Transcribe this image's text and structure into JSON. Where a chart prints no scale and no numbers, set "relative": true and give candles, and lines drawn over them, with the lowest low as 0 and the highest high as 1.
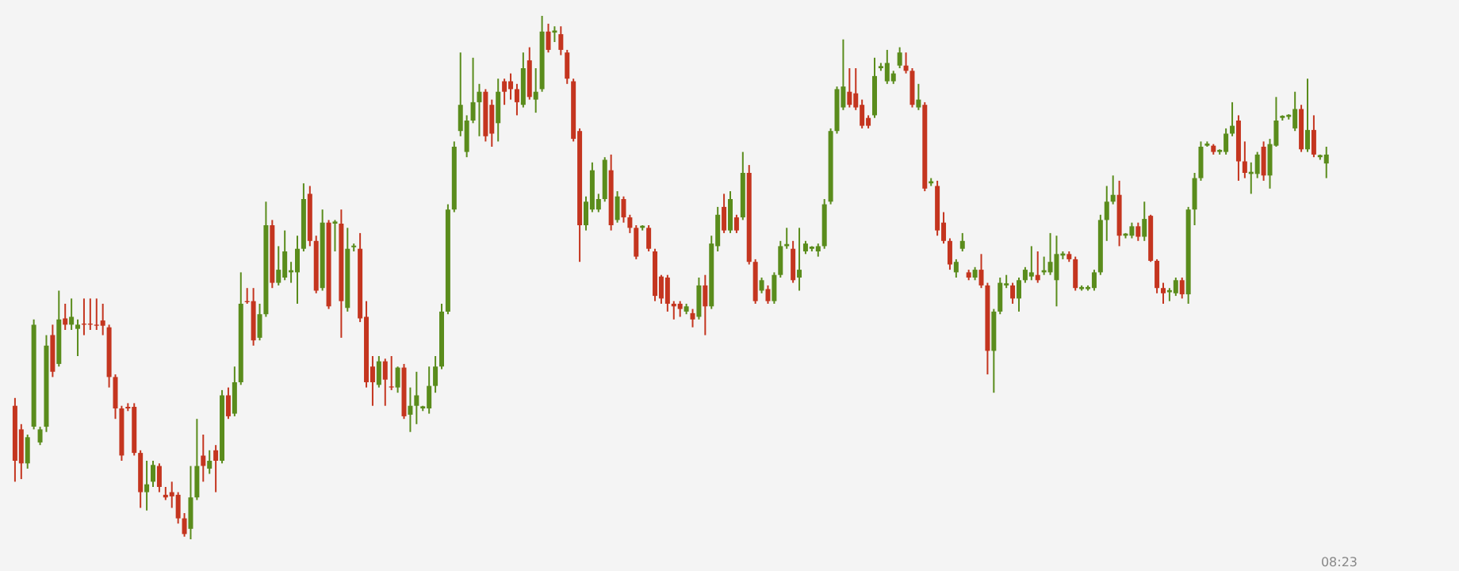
{
  "chart_data": {
    "type": "candlestick",
    "relative": true,
    "categories": [
      null,
      null,
      null,
      null,
      null,
      null,
      null,
      null,
      null,
      null,
      null,
      null,
      null,
      null,
      null,
      null,
      null,
      null,
      null,
      null,
      null,
      null,
      null,
      null,
      null,
      null,
      null,
      null,
      null,
      null,
      null,
      null,
      null,
      null,
      null,
      null,
      null,
      null,
      null,
      null,
      null,
      null,
      null,
      null,
      null,
      null,
      null,
      null,
      null,
      null,
      null,
      null,
      null,
      null,
      null,
      null,
      null,
      null,
      null,
      null,
      null,
      null,
      null,
      null,
      null,
      null,
      null,
      null,
      null,
      null,
      null,
      null,
      null,
      null,
      null,
      null,
      null,
      null,
      null,
      null,
      null,
      null,
      null,
      null,
      null,
      null,
      null,
      null,
      null,
      null,
      null,
      null,
      null,
      null,
      null,
      null,
      null,
      null,
      null,
      null,
      null,
      null,
      null,
      null,
      null,
      null,
      null,
      null,
      null,
      null,
      null,
      null,
      null,
      null,
      null,
      null,
      null,
      null,
      null,
      null,
      null,
      null,
      null,
      null,
      null,
      null,
      null,
      null,
      null,
      null,
      null,
      null,
      null,
      null,
      null,
      null,
      null,
      null,
      null,
      null,
      null,
      null,
      null,
      null,
      null,
      null,
      null,
      null,
      null,
      null,
      null,
      null,
      null,
      null,
      null,
      null,
      null,
      null,
      null,
      null,
      null,
      null,
      null,
      null,
      null,
      null,
      null,
      null,
      null,
      null,
      null,
      null,
      null,
      null,
      null,
      null,
      null,
      null,
      null,
      null,
      null,
      null,
      null,
      null,
      null,
      null,
      null,
      null,
      null,
      null,
      null,
      null,
      null,
      null,
      null,
      null,
      null,
      null,
      null,
      null,
      null,
      null,
      null,
      null,
      null,
      null,
      null,
      null,
      null,
      null
    ],
    "annotations": [
      "08:23"
    ],
    "ohlc": [
      [
        0.255,
        0.27,
        0.11,
        0.15
      ],
      [
        0.21,
        0.22,
        0.115,
        0.145
      ],
      [
        0.145,
        0.2,
        0.135,
        0.195
      ],
      [
        0.215,
        0.42,
        0.21,
        0.41
      ],
      [
        0.185,
        0.215,
        0.18,
        0.21
      ],
      [
        0.215,
        0.39,
        0.205,
        0.37
      ],
      [
        0.39,
        0.41,
        0.31,
        0.32
      ],
      [
        0.335,
        0.475,
        0.33,
        0.42
      ],
      [
        0.422,
        0.45,
        0.4,
        0.41
      ],
      [
        0.41,
        0.46,
        0.4,
        0.425
      ],
      [
        0.402,
        0.42,
        0.35,
        0.41
      ],
      [
        0.412,
        0.46,
        0.39,
        0.41
      ],
      [
        0.412,
        0.46,
        0.4,
        0.41
      ],
      [
        0.41,
        0.46,
        0.4,
        0.408
      ],
      [
        0.418,
        0.45,
        0.39,
        0.408
      ],
      [
        0.405,
        0.41,
        0.29,
        0.31
      ],
      [
        0.31,
        0.315,
        0.23,
        0.25
      ],
      [
        0.25,
        0.255,
        0.15,
        0.16
      ],
      [
        0.253,
        0.26,
        0.245,
        0.25
      ],
      [
        0.253,
        0.26,
        0.16,
        0.165
      ],
      [
        0.165,
        0.17,
        0.06,
        0.09
      ],
      [
        0.09,
        0.15,
        0.055,
        0.105
      ],
      [
        0.11,
        0.15,
        0.1,
        0.142
      ],
      [
        0.14,
        0.145,
        0.09,
        0.1
      ],
      [
        0.085,
        0.1,
        0.075,
        0.08
      ],
      [
        0.09,
        0.11,
        0.06,
        0.082
      ],
      [
        0.085,
        0.09,
        0.03,
        0.04
      ],
      [
        0.04,
        0.05,
        0.005,
        0.01
      ],
      [
        0.02,
        0.14,
        0,
        0.08
      ],
      [
        0.08,
        0.23,
        0.075,
        0.14
      ],
      [
        0.16,
        0.2,
        0.11,
        0.14
      ],
      [
        0.135,
        0.17,
        0.125,
        0.15
      ],
      [
        0.17,
        0.18,
        0.09,
        0.15
      ],
      [
        0.15,
        0.285,
        0.145,
        0.275
      ],
      [
        0.275,
        0.29,
        0.23,
        0.235
      ],
      [
        0.24,
        0.33,
        0.235,
        0.3
      ],
      [
        0.3,
        0.51,
        0.295,
        0.45
      ],
      [
        0.455,
        0.48,
        0.45,
        0.453
      ],
      [
        0.455,
        0.48,
        0.37,
        0.38
      ],
      [
        0.385,
        0.45,
        0.38,
        0.43
      ],
      [
        0.43,
        0.645,
        0.425,
        0.6
      ],
      [
        0.6,
        0.61,
        0.48,
        0.49
      ],
      [
        0.49,
        0.56,
        0.485,
        0.515
      ],
      [
        0.5,
        0.59,
        0.495,
        0.55
      ],
      [
        0.51,
        0.53,
        0.49,
        0.514
      ],
      [
        0.51,
        0.58,
        0.45,
        0.555
      ],
      [
        0.555,
        0.68,
        0.55,
        0.65
      ],
      [
        0.66,
        0.675,
        0.56,
        0.57
      ],
      [
        0.57,
        0.58,
        0.47,
        0.475
      ],
      [
        0.48,
        0.63,
        0.475,
        0.605
      ],
      [
        0.605,
        0.61,
        0.44,
        0.445
      ],
      [
        0.603,
        0.61,
        0.55,
        0.607
      ],
      [
        0.603,
        0.63,
        0.385,
        0.455
      ],
      [
        0.442,
        0.595,
        0.435,
        0.555
      ],
      [
        0.558,
        0.565,
        0.55,
        0.561
      ],
      [
        0.555,
        0.585,
        0.415,
        0.422
      ],
      [
        0.425,
        0.455,
        0.29,
        0.3
      ],
      [
        0.33,
        0.35,
        0.255,
        0.3
      ],
      [
        0.295,
        0.35,
        0.29,
        0.34
      ],
      [
        0.34,
        0.345,
        0.255,
        0.305
      ],
      [
        0.292,
        0.35,
        0.285,
        0.29
      ],
      [
        0.29,
        0.33,
        0.28,
        0.328
      ],
      [
        0.328,
        0.335,
        0.23,
        0.235
      ],
      [
        0.238,
        0.29,
        0.205,
        0.255
      ],
      [
        0.255,
        0.32,
        0.22,
        0.275
      ],
      [
        0.25,
        0.255,
        0.245,
        0.254
      ],
      [
        0.25,
        0.33,
        0.24,
        0.293
      ],
      [
        0.293,
        0.35,
        0.28,
        0.33
      ],
      [
        0.33,
        0.45,
        0.325,
        0.435
      ],
      [
        0.435,
        0.64,
        0.43,
        0.63
      ],
      [
        0.63,
        0.76,
        0.625,
        0.75
      ],
      [
        0.78,
        0.93,
        0.77,
        0.83
      ],
      [
        0.74,
        0.81,
        0.73,
        0.8
      ],
      [
        0.8,
        0.92,
        0.795,
        0.835
      ],
      [
        0.835,
        0.87,
        0.77,
        0.855
      ],
      [
        0.855,
        0.86,
        0.76,
        0.77
      ],
      [
        0.83,
        0.84,
        0.75,
        0.775
      ],
      [
        0.795,
        0.88,
        0.76,
        0.855
      ],
      [
        0.875,
        0.88,
        0.83,
        0.855
      ],
      [
        0.875,
        0.89,
        0.84,
        0.86
      ],
      [
        0.86,
        0.87,
        0.81,
        0.835
      ],
      [
        0.83,
        0.93,
        0.825,
        0.9
      ],
      [
        0.915,
        0.94,
        0.84,
        0.845
      ],
      [
        0.84,
        0.9,
        0.815,
        0.855
      ],
      [
        0.86,
        1,
        0.855,
        0.97
      ],
      [
        0.97,
        0.985,
        0.93,
        0.935
      ],
      [
        0.968,
        0.98,
        0.95,
        0.972
      ],
      [
        0.965,
        0.98,
        0.925,
        0.935
      ],
      [
        0.93,
        0.935,
        0.87,
        0.88
      ],
      [
        0.875,
        0.88,
        0.76,
        0.765
      ],
      [
        0.78,
        0.785,
        0.53,
        0.6
      ],
      [
        0.6,
        0.655,
        0.59,
        0.645
      ],
      [
        0.63,
        0.72,
        0.625,
        0.705
      ],
      [
        0.63,
        0.66,
        0.625,
        0.65
      ],
      [
        0.65,
        0.73,
        0.645,
        0.725
      ],
      [
        0.705,
        0.735,
        0.59,
        0.6
      ],
      [
        0.61,
        0.665,
        0.605,
        0.655
      ],
      [
        0.65,
        0.655,
        0.605,
        0.615
      ],
      [
        0.615,
        0.62,
        0.585,
        0.595
      ],
      [
        0.595,
        0.6,
        0.535,
        0.54
      ],
      [
        0.595,
        0.6,
        0.59,
        0.599
      ],
      [
        0.595,
        0.6,
        0.55,
        0.555
      ],
      [
        0.55,
        0.555,
        0.455,
        0.465
      ],
      [
        0.502,
        0.505,
        0.45,
        0.46
      ],
      [
        0.5,
        0.505,
        0.435,
        0.45
      ],
      [
        0.45,
        0.455,
        0.42,
        0.445
      ],
      [
        0.45,
        0.455,
        0.425,
        0.44
      ],
      [
        0.435,
        0.45,
        0.43,
        0.445
      ],
      [
        0.432,
        0.44,
        0.405,
        0.42
      ],
      [
        0.425,
        0.5,
        0.42,
        0.485
      ],
      [
        0.485,
        0.505,
        0.39,
        0.445
      ],
      [
        0.445,
        0.58,
        0.44,
        0.565
      ],
      [
        0.56,
        0.635,
        0.55,
        0.62
      ],
      [
        0.635,
        0.66,
        0.585,
        0.59
      ],
      [
        0.59,
        0.665,
        0.585,
        0.65
      ],
      [
        0.615,
        0.62,
        0.585,
        0.59
      ],
      [
        0.615,
        0.74,
        0.61,
        0.7
      ],
      [
        0.7,
        0.715,
        0.525,
        0.53
      ],
      [
        0.53,
        0.535,
        0.45,
        0.455
      ],
      [
        0.475,
        0.5,
        0.47,
        0.495
      ],
      [
        0.478,
        0.485,
        0.45,
        0.455
      ],
      [
        0.455,
        0.51,
        0.45,
        0.505
      ],
      [
        0.505,
        0.57,
        0.5,
        0.56
      ],
      [
        0.56,
        0.595,
        0.555,
        0.564
      ],
      [
        0.555,
        0.57,
        0.49,
        0.495
      ],
      [
        0.5,
        0.595,
        0.475,
        0.515
      ],
      [
        0.55,
        0.57,
        0.545,
        0.565
      ],
      [
        0.555,
        0.56,
        0.55,
        0.559
      ],
      [
        0.55,
        0.565,
        0.54,
        0.56
      ],
      [
        0.56,
        0.65,
        0.555,
        0.64
      ],
      [
        0.645,
        0.785,
        0.64,
        0.78
      ],
      [
        0.78,
        0.865,
        0.775,
        0.86
      ],
      [
        0.825,
        0.955,
        0.82,
        0.865
      ],
      [
        0.855,
        0.9,
        0.825,
        0.83
      ],
      [
        0.852,
        0.9,
        0.82,
        0.825
      ],
      [
        0.83,
        0.84,
        0.785,
        0.79
      ],
      [
        0.805,
        0.81,
        0.785,
        0.79
      ],
      [
        0.81,
        0.92,
        0.805,
        0.885
      ],
      [
        0.9,
        0.91,
        0.895,
        0.904
      ],
      [
        0.875,
        0.935,
        0.87,
        0.91
      ],
      [
        0.875,
        0.895,
        0.87,
        0.89
      ],
      [
        0.905,
        0.94,
        0.9,
        0.93
      ],
      [
        0.905,
        0.93,
        0.89,
        0.895
      ],
      [
        0.895,
        0.9,
        0.825,
        0.83
      ],
      [
        0.825,
        0.87,
        0.82,
        0.84
      ],
      [
        0.83,
        0.835,
        0.665,
        0.67
      ],
      [
        0.68,
        0.69,
        0.675,
        0.684
      ],
      [
        0.675,
        0.685,
        0.58,
        0.59
      ],
      [
        0.605,
        0.625,
        0.565,
        0.57
      ],
      [
        0.57,
        0.575,
        0.515,
        0.525
      ],
      [
        0.51,
        0.535,
        0.5,
        0.53
      ],
      [
        0.555,
        0.585,
        0.55,
        0.57
      ],
      [
        0.51,
        0.515,
        0.495,
        0.5
      ],
      [
        0.5,
        0.52,
        0.495,
        0.515
      ],
      [
        0.515,
        0.545,
        0.48,
        0.485
      ],
      [
        0.485,
        0.49,
        0.315,
        0.36
      ],
      [
        0.36,
        0.44,
        0.28,
        0.435
      ],
      [
        0.435,
        0.5,
        0.43,
        0.49
      ],
      [
        0.485,
        0.505,
        0.48,
        0.489
      ],
      [
        0.485,
        0.49,
        0.45,
        0.46
      ],
      [
        0.46,
        0.5,
        0.435,
        0.495
      ],
      [
        0.495,
        0.52,
        0.49,
        0.515
      ],
      [
        0.502,
        0.56,
        0.495,
        0.51
      ],
      [
        0.505,
        0.55,
        0.49,
        0.495
      ],
      [
        0.51,
        0.54,
        0.505,
        0.514
      ],
      [
        0.51,
        0.585,
        0.505,
        0.53
      ],
      [
        0.495,
        0.58,
        0.445,
        0.545
      ],
      [
        0.542,
        0.55,
        0.535,
        0.546
      ],
      [
        0.545,
        0.55,
        0.53,
        0.535
      ],
      [
        0.535,
        0.54,
        0.475,
        0.48
      ],
      [
        0.478,
        0.485,
        0.475,
        0.482
      ],
      [
        0.478,
        0.485,
        0.475,
        0.482
      ],
      [
        0.48,
        0.515,
        0.475,
        0.51
      ],
      [
        0.51,
        0.62,
        0.505,
        0.61
      ],
      [
        0.61,
        0.675,
        0.57,
        0.645
      ],
      [
        0.645,
        0.695,
        0.64,
        0.658
      ],
      [
        0.658,
        0.685,
        0.56,
        0.58
      ],
      [
        0.58,
        0.585,
        0.575,
        0.584
      ],
      [
        0.58,
        0.605,
        0.575,
        0.598
      ],
      [
        0.598,
        0.605,
        0.57,
        0.578
      ],
      [
        0.578,
        0.645,
        0.57,
        0.612
      ],
      [
        0.618,
        0.62,
        0.53,
        0.532
      ],
      [
        0.532,
        0.535,
        0.47,
        0.48
      ],
      [
        0.48,
        0.49,
        0.45,
        0.47
      ],
      [
        0.472,
        0.48,
        0.455,
        0.476
      ],
      [
        0.47,
        0.5,
        0.465,
        0.495
      ],
      [
        0.495,
        0.5,
        0.46,
        0.468
      ],
      [
        0.468,
        0.635,
        0.45,
        0.63
      ],
      [
        0.63,
        0.7,
        0.6,
        0.69
      ],
      [
        0.69,
        0.76,
        0.685,
        0.75
      ],
      [
        0.752,
        0.76,
        0.75,
        0.756
      ],
      [
        0.752,
        0.755,
        0.735,
        0.74
      ],
      [
        0.74,
        0.745,
        0.735,
        0.744
      ],
      [
        0.74,
        0.785,
        0.735,
        0.775
      ],
      [
        0.775,
        0.835,
        0.77,
        0.79
      ],
      [
        0.8,
        0.81,
        0.685,
        0.722
      ],
      [
        0.722,
        0.76,
        0.69,
        0.7
      ],
      [
        0.698,
        0.72,
        0.66,
        0.702
      ],
      [
        0.698,
        0.74,
        0.69,
        0.735
      ],
      [
        0.75,
        0.76,
        0.685,
        0.695
      ],
      [
        0.695,
        0.765,
        0.67,
        0.755
      ],
      [
        0.752,
        0.845,
        0.75,
        0.8
      ],
      [
        0.805,
        0.81,
        0.8,
        0.809
      ],
      [
        0.807,
        0.812,
        0.802,
        0.811
      ],
      [
        0.785,
        0.855,
        0.78,
        0.822
      ],
      [
        0.822,
        0.83,
        0.74,
        0.745
      ],
      [
        0.745,
        0.88,
        0.74,
        0.782
      ],
      [
        0.782,
        0.81,
        0.73,
        0.735
      ],
      [
        0.73,
        0.735,
        0.725,
        0.734
      ],
      [
        0.718,
        0.75,
        0.69,
        0.735
      ]
    ],
    "colors": [
      "#c4351f",
      "#c4351f",
      "#5a8c1c",
      "#5a8c1c",
      "#5a8c1c",
      "#5a8c1c",
      "#c4351f",
      "#5a8c1c",
      "#c4351f",
      "#5a8c1c",
      "#5a8c1c",
      "#c4351f",
      "#c4351f",
      "#c4351f",
      "#c4351f",
      "#c4351f",
      "#c4351f",
      "#c4351f",
      "#c4351f",
      "#c4351f",
      "#c4351f",
      "#5a8c1c",
      "#5a8c1c",
      "#c4351f",
      "#c4351f",
      "#c4351f",
      "#c4351f",
      "#c4351f",
      "#5a8c1c",
      "#5a8c1c",
      "#c4351f",
      "#5a8c1c",
      "#c4351f",
      "#5a8c1c",
      "#c4351f",
      "#5a8c1c",
      "#5a8c1c",
      "#c4351f",
      "#c4351f",
      "#5a8c1c",
      "#5a8c1c",
      "#c4351f",
      "#5a8c1c",
      "#5a8c1c",
      "#5a8c1c",
      "#5a8c1c",
      "#5a8c1c",
      "#c4351f",
      "#c4351f",
      "#5a8c1c",
      "#c4351f",
      "#5a8c1c",
      "#c4351f",
      "#5a8c1c",
      "#5a8c1c",
      "#c4351f",
      "#c4351f",
      "#c4351f",
      "#5a8c1c",
      "#c4351f",
      "#c4351f",
      "#5a8c1c",
      "#c4351f",
      "#5a8c1c",
      "#5a8c1c",
      "#5a8c1c",
      "#5a8c1c",
      "#5a8c1c",
      "#5a8c1c",
      "#5a8c1c",
      "#5a8c1c",
      "#5a8c1c",
      "#5a8c1c",
      "#5a8c1c",
      "#5a8c1c",
      "#c4351f",
      "#c4351f",
      "#5a8c1c",
      "#c4351f",
      "#c4351f",
      "#c4351f",
      "#5a8c1c",
      "#c4351f",
      "#5a8c1c",
      "#5a8c1c",
      "#c4351f",
      "#5a8c1c",
      "#c4351f",
      "#c4351f",
      "#c4351f",
      "#c4351f",
      "#5a8c1c",
      "#5a8c1c",
      "#5a8c1c",
      "#5a8c1c",
      "#c4351f",
      "#5a8c1c",
      "#c4351f",
      "#c4351f",
      "#c4351f",
      "#5a8c1c",
      "#c4351f",
      "#c4351f",
      "#c4351f",
      "#c4351f",
      "#c4351f",
      "#c4351f",
      "#5a8c1c",
      "#c4351f",
      "#5a8c1c",
      "#c4351f",
      "#5a8c1c",
      "#5a8c1c",
      "#c4351f",
      "#5a8c1c",
      "#c4351f",
      "#5a8c1c",
      "#c4351f",
      "#c4351f",
      "#5a8c1c",
      "#c4351f",
      "#5a8c1c",
      "#5a8c1c",
      "#5a8c1c",
      "#c4351f",
      "#5a8c1c",
      "#5a8c1c",
      "#5a8c1c",
      "#5a8c1c",
      "#5a8c1c",
      "#5a8c1c",
      "#5a8c1c",
      "#5a8c1c",
      "#c4351f",
      "#c4351f",
      "#c4351f",
      "#c4351f",
      "#5a8c1c",
      "#5a8c1c",
      "#5a8c1c",
      "#5a8c1c",
      "#5a8c1c",
      "#c4351f",
      "#c4351f",
      "#5a8c1c",
      "#c4351f",
      "#5a8c1c",
      "#c4351f",
      "#c4351f",
      "#c4351f",
      "#5a8c1c",
      "#5a8c1c",
      "#c4351f",
      "#5a8c1c",
      "#c4351f",
      "#c4351f",
      "#5a8c1c",
      "#5a8c1c",
      "#5a8c1c",
      "#c4351f",
      "#5a8c1c",
      "#5a8c1c",
      "#5a8c1c",
      "#c4351f",
      "#5a8c1c",
      "#5a8c1c",
      "#5a8c1c",
      "#5a8c1c",
      "#c4351f",
      "#c4351f",
      "#5a8c1c",
      "#5a8c1c",
      "#5a8c1c",
      "#5a8c1c",
      "#5a8c1c",
      "#5a8c1c",
      "#c4351f",
      "#5a8c1c",
      "#5a8c1c",
      "#c4351f",
      "#5a8c1c",
      "#c4351f",
      "#c4351f",
      "#c4351f",
      "#5a8c1c",
      "#5a8c1c",
      "#c4351f",
      "#5a8c1c",
      "#5a8c1c",
      "#5a8c1c",
      "#5a8c1c",
      "#c4351f",
      "#5a8c1c",
      "#5a8c1c",
      "#5a8c1c",
      "#c4351f",
      "#c4351f",
      "#5a8c1c",
      "#5a8c1c",
      "#c4351f",
      "#5a8c1c",
      "#5a8c1c",
      "#5a8c1c",
      "#5a8c1c",
      "#5a8c1c",
      "#c4351f",
      "#5a8c1c",
      "#c4351f",
      "#5a8c1c",
      "#5a8c1c"
    ]
  }
}
